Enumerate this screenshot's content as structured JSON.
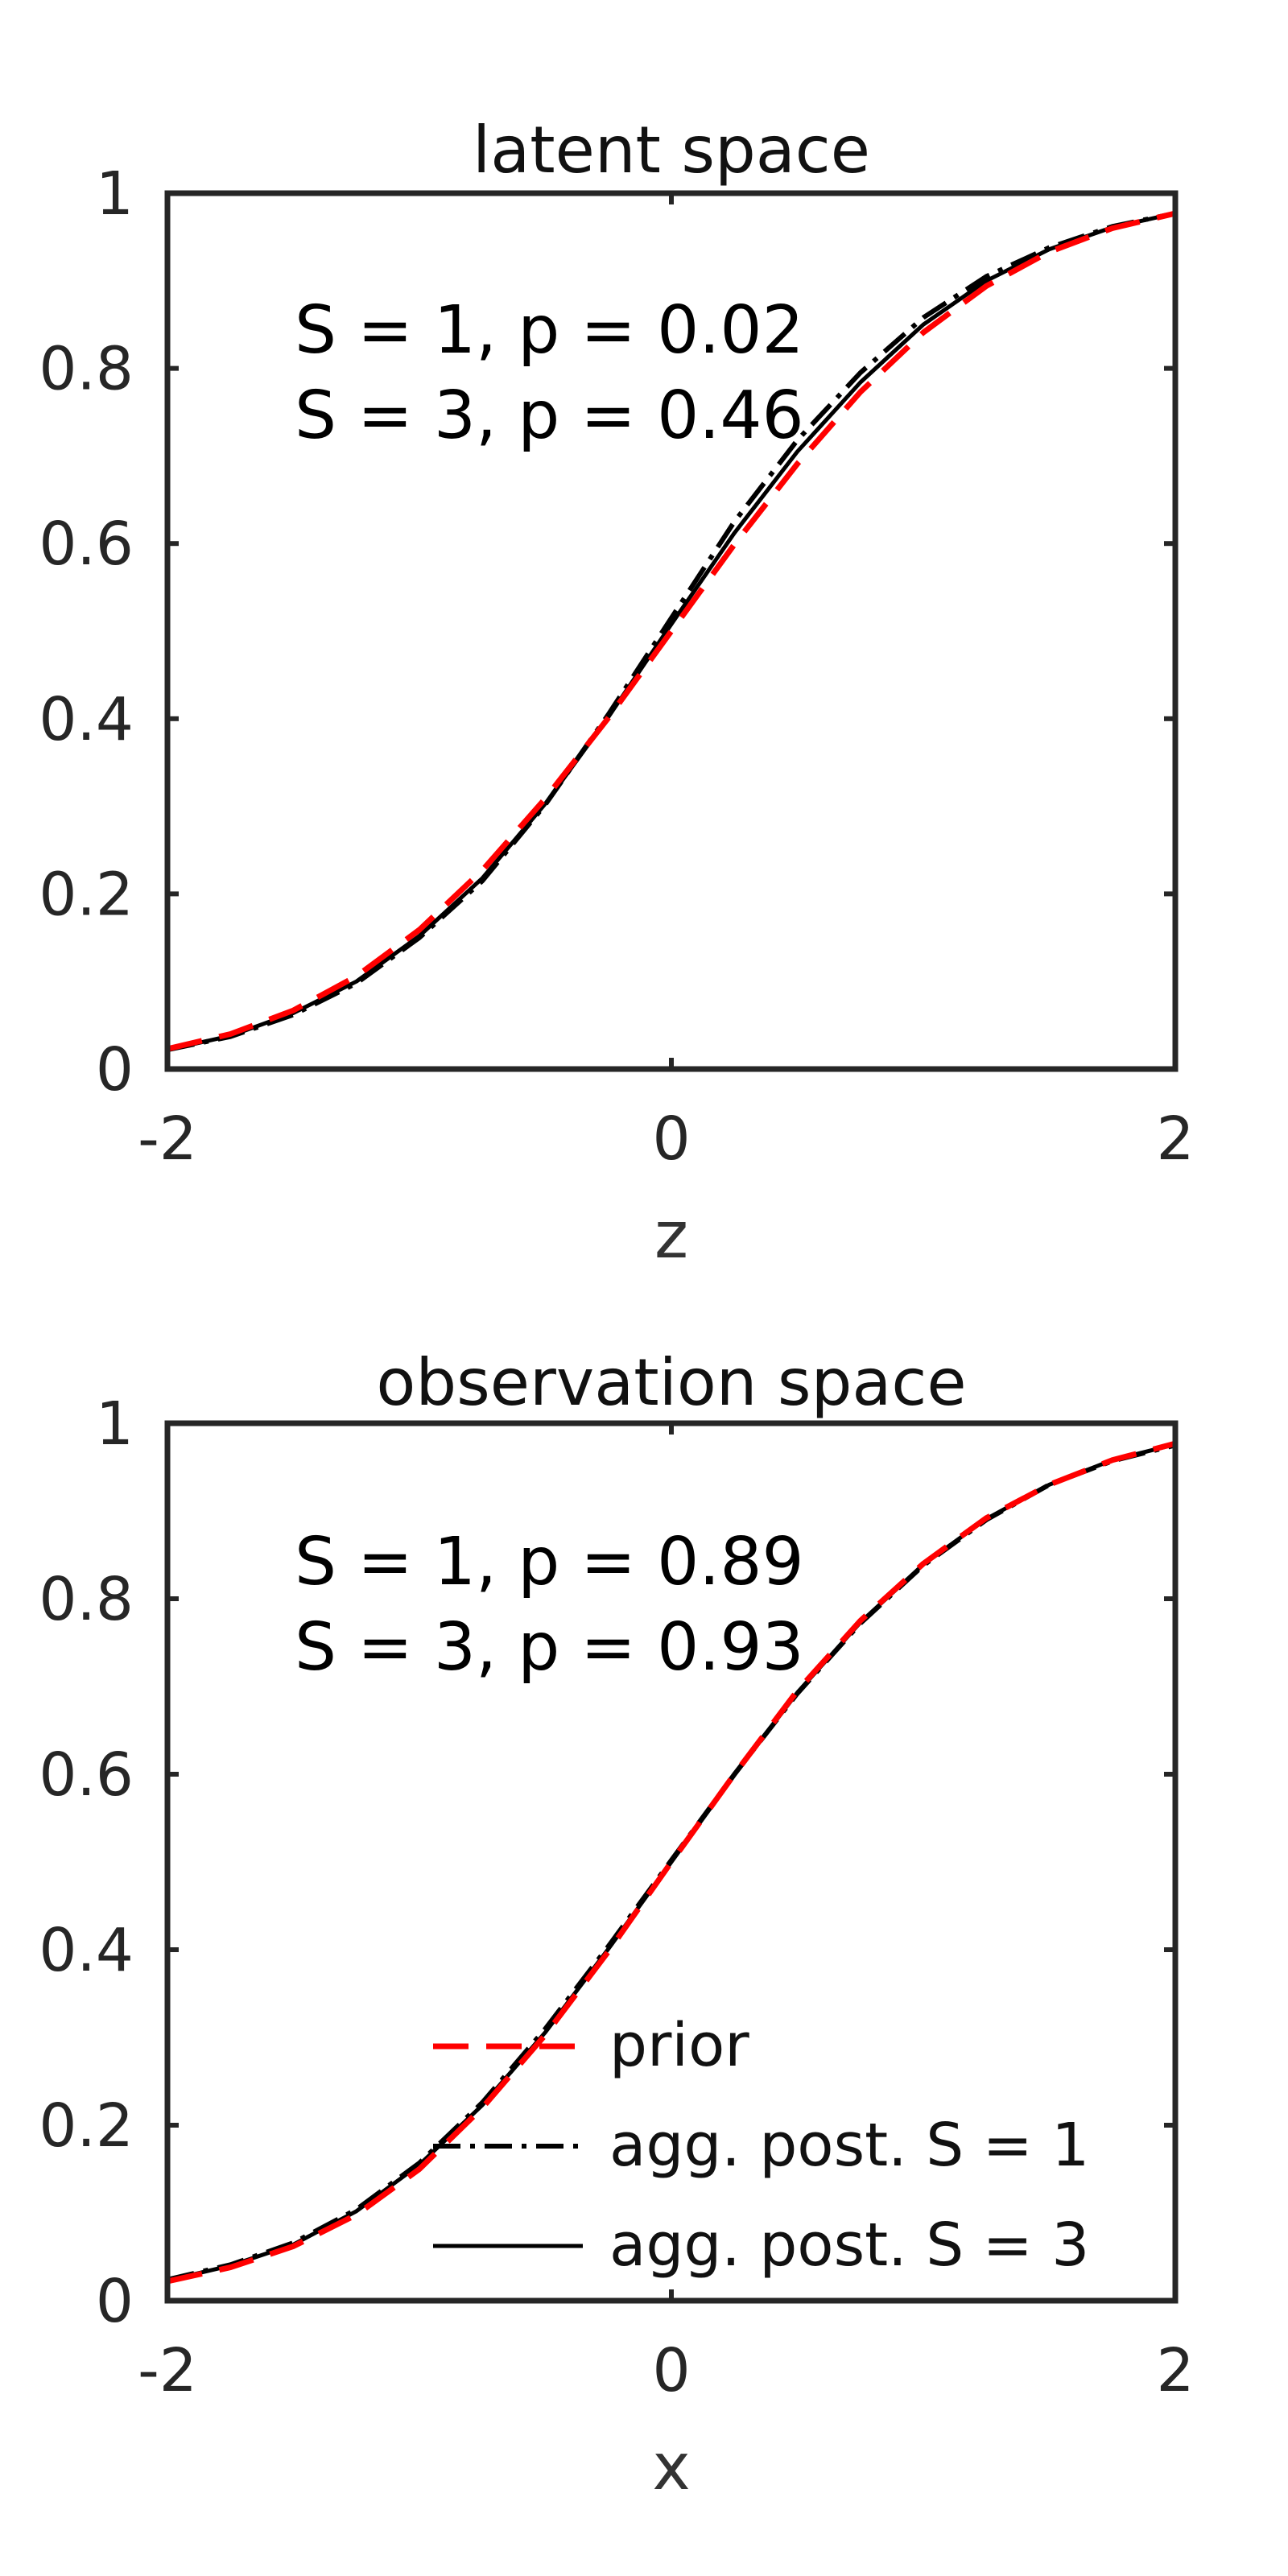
{
  "chart_data": [
    {
      "type": "line",
      "title": "latent space",
      "xlabel": "z",
      "ylabel": "",
      "xlim": [
        -2,
        2
      ],
      "ylim": [
        0,
        1
      ],
      "xticks": [
        "-2",
        "0",
        "2"
      ],
      "yticks": [
        "0",
        "0.2",
        "0.4",
        "0.6",
        "0.8",
        "1"
      ],
      "grid": false,
      "annotations": [
        "S = 1, p = 0.02",
        "S = 3, p = 0.46"
      ],
      "series": [
        {
          "key": "prior",
          "style": "dashed",
          "color": "#ff0000",
          "x": [
            -2,
            -1.75,
            -1.5,
            -1.25,
            -1,
            -0.75,
            -0.5,
            -0.25,
            0,
            0.25,
            0.5,
            0.75,
            1,
            1.25,
            1.5,
            1.75,
            2
          ],
          "y": [
            0.023,
            0.04,
            0.067,
            0.106,
            0.159,
            0.227,
            0.309,
            0.401,
            0.5,
            0.599,
            0.691,
            0.773,
            0.841,
            0.894,
            0.933,
            0.96,
            0.977
          ]
        },
        {
          "key": "s1",
          "style": "dashdot",
          "color": "#000000",
          "x": [
            -2,
            -1.75,
            -1.5,
            -1.25,
            -1,
            -0.75,
            -0.5,
            -0.25,
            0,
            0.25,
            0.5,
            0.75,
            1,
            1.25,
            1.5,
            1.75,
            2
          ],
          "y": [
            0.022,
            0.037,
            0.062,
            0.098,
            0.15,
            0.215,
            0.302,
            0.405,
            0.515,
            0.625,
            0.718,
            0.795,
            0.858,
            0.905,
            0.938,
            0.962,
            0.977
          ]
        },
        {
          "key": "s3",
          "style": "solid",
          "color": "#000000",
          "x": [
            -2,
            -1.75,
            -1.5,
            -1.25,
            -1,
            -0.75,
            -0.5,
            -0.25,
            0,
            0.25,
            0.5,
            0.75,
            1,
            1.25,
            1.5,
            1.75,
            2
          ],
          "y": [
            0.022,
            0.038,
            0.064,
            0.1,
            0.152,
            0.218,
            0.303,
            0.402,
            0.508,
            0.612,
            0.705,
            0.784,
            0.85,
            0.9,
            0.936,
            0.961,
            0.977
          ]
        }
      ]
    },
    {
      "type": "line",
      "title": "observation space",
      "xlabel": "x",
      "ylabel": "",
      "xlim": [
        -2,
        2
      ],
      "ylim": [
        0,
        1
      ],
      "xticks": [
        "-2",
        "0",
        "2"
      ],
      "yticks": [
        "0",
        "0.2",
        "0.4",
        "0.6",
        "0.8",
        "1"
      ],
      "grid": false,
      "annotations": [
        "S = 1, p = 0.89",
        "S = 3, p = 0.93"
      ],
      "legend": {
        "placement": "bottom-right",
        "entries": [
          {
            "label": "prior",
            "style": "dashed",
            "color": "#ff0000"
          },
          {
            "label": "agg. post. S = 1",
            "style": "dashdot",
            "color": "#000000"
          },
          {
            "label": "agg. post. S = 3",
            "style": "solid",
            "color": "#000000"
          }
        ]
      },
      "series": [
        {
          "key": "prior",
          "style": "dashed",
          "color": "#ff0000",
          "x": [
            -2,
            -1.75,
            -1.5,
            -1.25,
            -1,
            -0.75,
            -0.5,
            -0.25,
            0,
            0.25,
            0.5,
            0.75,
            1,
            1.25,
            1.5,
            1.75,
            2
          ],
          "y": [
            0.022,
            0.038,
            0.062,
            0.098,
            0.15,
            0.22,
            0.303,
            0.398,
            0.5,
            0.6,
            0.695,
            0.775,
            0.84,
            0.892,
            0.93,
            0.958,
            0.977
          ]
        },
        {
          "key": "s1",
          "style": "dashdot",
          "color": "#000000",
          "x": [
            -2,
            -1.75,
            -1.5,
            -1.25,
            -1,
            -0.75,
            -0.5,
            -0.25,
            0,
            0.25,
            0.5,
            0.75,
            1,
            1.25,
            1.5,
            1.75,
            2
          ],
          "y": [
            0.024,
            0.041,
            0.066,
            0.104,
            0.157,
            0.226,
            0.31,
            0.404,
            0.502,
            0.6,
            0.692,
            0.772,
            0.838,
            0.89,
            0.93,
            0.957,
            0.975
          ]
        },
        {
          "key": "s3",
          "style": "solid",
          "color": "#000000",
          "x": [
            -2,
            -1.75,
            -1.5,
            -1.25,
            -1,
            -0.75,
            -0.5,
            -0.25,
            0,
            0.25,
            0.5,
            0.75,
            1,
            1.25,
            1.5,
            1.75,
            2
          ],
          "y": [
            0.023,
            0.04,
            0.064,
            0.102,
            0.155,
            0.223,
            0.306,
            0.401,
            0.5,
            0.599,
            0.693,
            0.773,
            0.839,
            0.891,
            0.93,
            0.958,
            0.976
          ]
        }
      ]
    }
  ]
}
